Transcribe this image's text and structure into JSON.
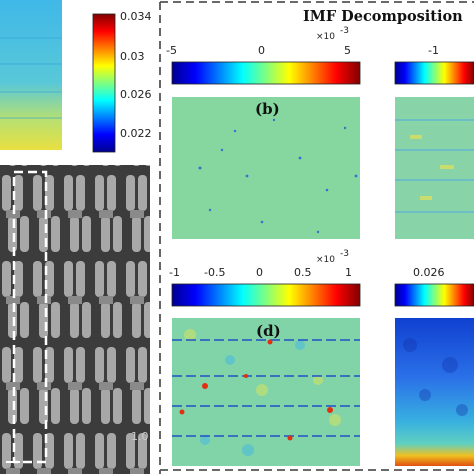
{
  "figure": {
    "title": "IMF Decomposition",
    "panel_labels": {
      "b": "(b)",
      "d": "(d)"
    },
    "left_colorbar": {
      "ticks": [
        "0.034",
        "0.03",
        "0.026",
        "0.022"
      ]
    },
    "colorbar_b": {
      "ticks": [
        "-5",
        "0",
        "5"
      ],
      "exponent_base": "×10",
      "exponent_power": "-3"
    },
    "colorbar_c": {
      "ticks": [
        "-1"
      ]
    },
    "colorbar_d": {
      "ticks": [
        "-1",
        "-0.5",
        "0",
        "0.5",
        "1"
      ],
      "exponent_base": "×10",
      "exponent_power": "-3"
    },
    "colorbar_e": {
      "ticks": [
        "0.026"
      ]
    },
    "sem_scale_text": "1.0",
    "colors": {
      "jet_dark_blue": "#00008f",
      "jet_cyan": "#30c8e8",
      "jet_yellow": "#f0e020",
      "jet_red": "#800000",
      "dash_border": "#555555",
      "field_green": "#86d6a0"
    }
  }
}
